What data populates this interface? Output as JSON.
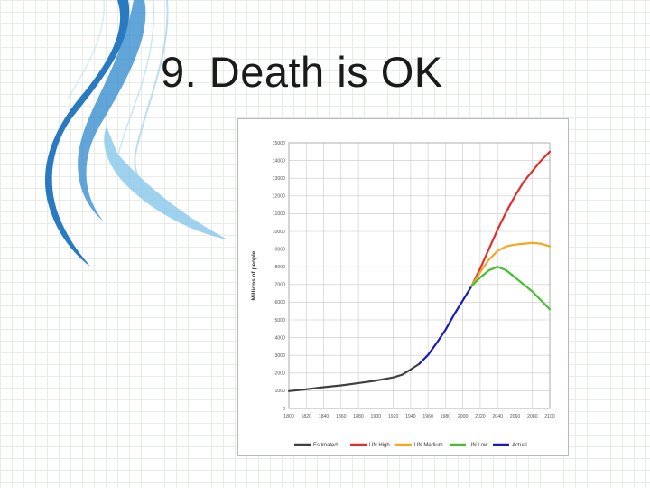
{
  "slide": {
    "title": "9. Death is OK"
  },
  "colors": {
    "Estimated": "#404040",
    "UN High": "#e0302a",
    "UN Medium": "#f5a623",
    "UN Low": "#43c22e",
    "Actual": "#1a1ab8",
    "swoosh_dark": "#1e73be",
    "swoosh_light": "#7fc3e8"
  },
  "chart_data": {
    "type": "line",
    "title": "",
    "xlabel": "",
    "ylabel": "Millions of people",
    "xlim": [
      1800,
      2100
    ],
    "ylim": [
      0,
      15000
    ],
    "x_ticks": [
      1800,
      1820,
      1840,
      1860,
      1880,
      1900,
      1920,
      1940,
      1960,
      1980,
      2000,
      2020,
      2040,
      2060,
      2080,
      2100
    ],
    "y_ticks": [
      0,
      1000,
      2000,
      3000,
      4000,
      5000,
      6000,
      7000,
      8000,
      9000,
      10000,
      11000,
      12000,
      13000,
      14000,
      15000
    ],
    "grid": true,
    "legend_position": "bottom",
    "series": [
      {
        "name": "Estimated",
        "x": [
          1800,
          1820,
          1840,
          1860,
          1880,
          1900,
          1920,
          1930,
          1940,
          1950
        ],
        "y": [
          980,
          1080,
          1200,
          1300,
          1430,
          1570,
          1750,
          1900,
          2200,
          2520
        ]
      },
      {
        "name": "Actual",
        "x": [
          1950,
          1960,
          1970,
          1980,
          1990,
          2000,
          2010
        ],
        "y": [
          2520,
          3020,
          3700,
          4430,
          5300,
          6100,
          6900
        ]
      },
      {
        "name": "UN High",
        "x": [
          2010,
          2020,
          2030,
          2040,
          2050,
          2060,
          2070,
          2080,
          2090,
          2100
        ],
        "y": [
          6900,
          7900,
          9000,
          10100,
          11100,
          12000,
          12800,
          13400,
          14000,
          14500
        ]
      },
      {
        "name": "UN Medium",
        "x": [
          2010,
          2020,
          2030,
          2040,
          2050,
          2060,
          2070,
          2080,
          2090,
          2100
        ],
        "y": [
          6900,
          7700,
          8400,
          8900,
          9150,
          9250,
          9300,
          9350,
          9300,
          9150
        ]
      },
      {
        "name": "UN Low",
        "x": [
          2010,
          2020,
          2030,
          2040,
          2050,
          2060,
          2070,
          2080,
          2090,
          2100
        ],
        "y": [
          6900,
          7400,
          7800,
          8000,
          7800,
          7400,
          7000,
          6600,
          6100,
          5600
        ]
      }
    ]
  }
}
